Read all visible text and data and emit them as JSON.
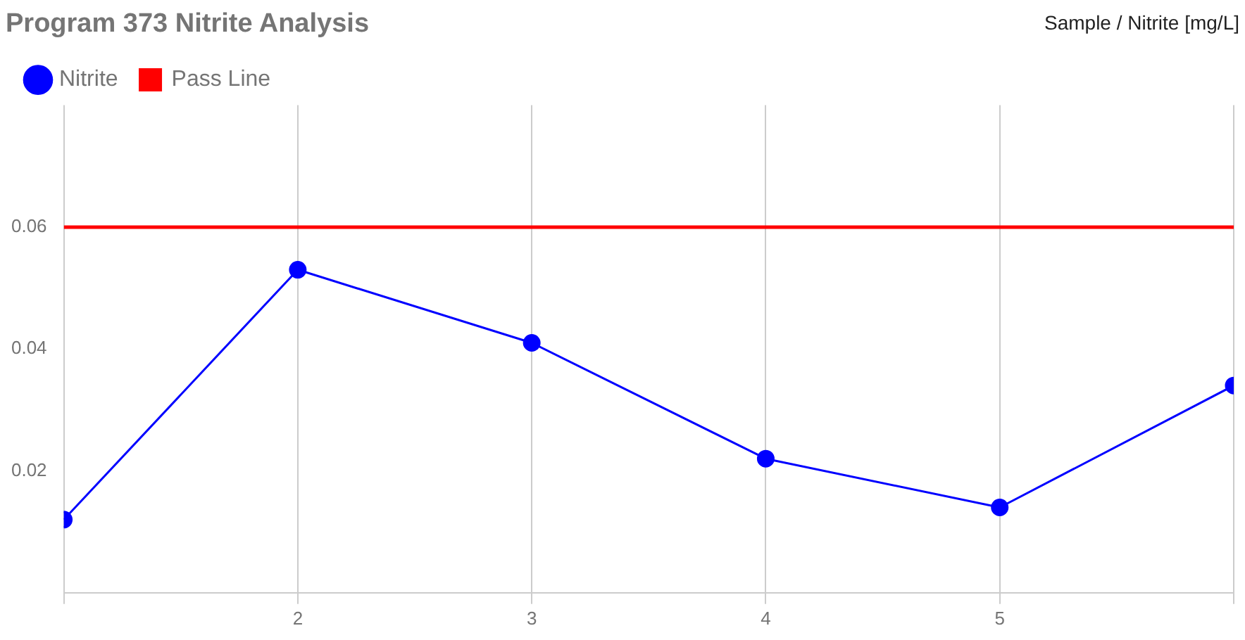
{
  "chart_data": {
    "type": "line",
    "title": "Program 373 Nitrite Analysis",
    "ylabel": "Sample / Nitrite [mg/L]",
    "x": [
      1,
      2,
      3,
      4,
      5,
      6
    ],
    "series": [
      {
        "name": "Nitrite",
        "color": "#0000ff",
        "values": [
          0.012,
          0.053,
          0.041,
          0.022,
          0.014,
          0.034
        ]
      }
    ],
    "ref_lines": [
      {
        "axis": "y",
        "value": 0.06,
        "label": "Pass Line",
        "color": "#ff0000"
      }
    ],
    "xlim": [
      1,
      6
    ],
    "xticks": [
      {
        "value": 1,
        "label": null
      },
      2,
      3,
      4,
      5,
      {
        "value": 6,
        "label": null
      }
    ],
    "ylim": [
      0,
      0.08
    ],
    "yticks": [
      0.02,
      0.04,
      0.06
    ],
    "grid": "x",
    "legend": "top left",
    "marker": "circle",
    "line_style": "solid"
  }
}
